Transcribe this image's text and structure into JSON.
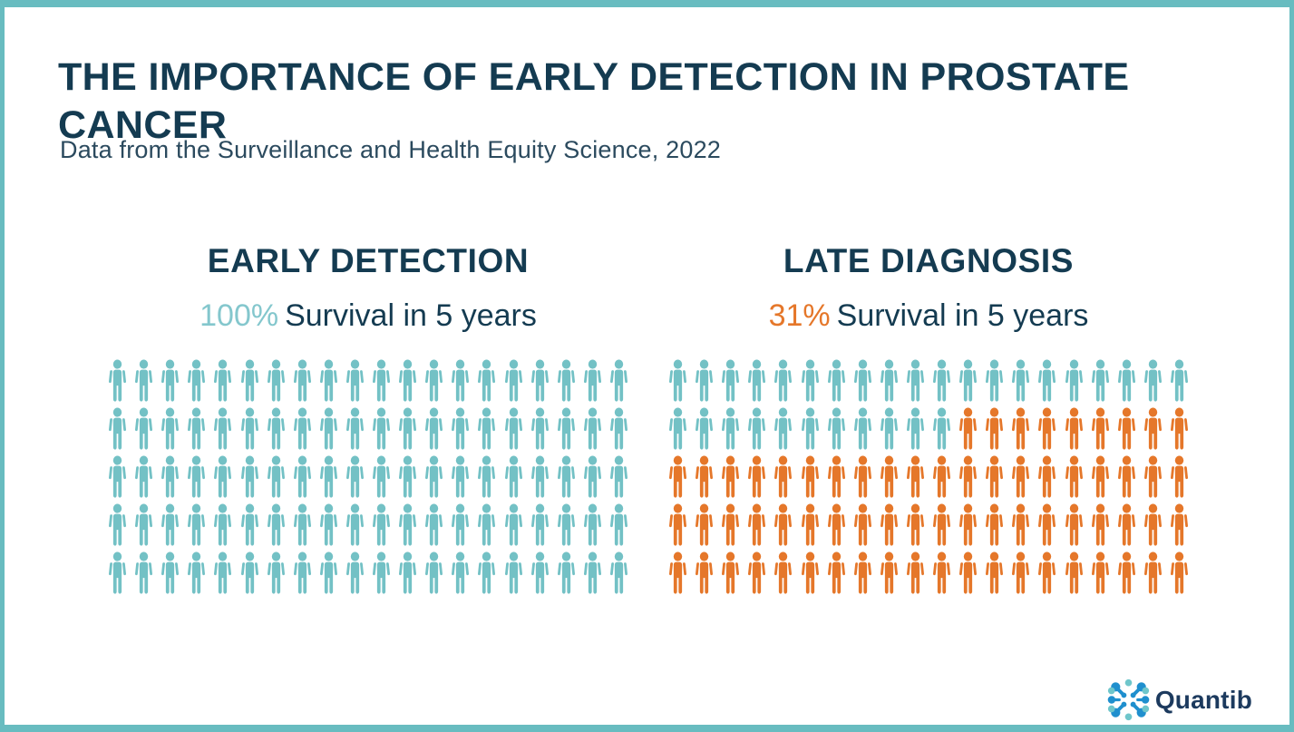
{
  "page": {
    "title": "THE IMPORTANCE OF EARLY DETECTION IN PROSTATE CANCER",
    "subtitle": "Data from the Surveillance and Health Equity Science, 2022"
  },
  "colors": {
    "frame_teal": "#68bcc0",
    "heading_navy": "#143b51",
    "subtitle_slate": "#2b4a5e",
    "person_teal": "#73c1c5",
    "person_orange": "#e5772a",
    "percent_teal": "#84c7cd",
    "percent_orange": "#e5772a",
    "logo_blue": "#1f8fce",
    "logo_teal": "#6fc6cb",
    "logo_navy": "#1c3a5e"
  },
  "chart_data": [
    {
      "type": "pictogram-waffle",
      "title": "EARLY DETECTION",
      "stat_percent": "100%",
      "stat_label": "Survival in 5 years",
      "rows": 5,
      "cols": 20,
      "total_icons": 100,
      "survived_icons": 100,
      "not_survived_icons": 0,
      "survived_percent": 100,
      "icon_colors": {
        "survived": "#73c1c5",
        "not_survived": "#e5772a"
      },
      "percent_color": "#84c7cd",
      "fill_order": "row-major-top-left"
    },
    {
      "type": "pictogram-waffle",
      "title": "LATE DIAGNOSIS",
      "stat_percent": "31%",
      "stat_label": "Survival in 5 years",
      "rows": 5,
      "cols": 20,
      "total_icons": 100,
      "survived_icons": 31,
      "not_survived_icons": 69,
      "survived_percent": 31,
      "icon_colors": {
        "survived": "#73c1c5",
        "not_survived": "#e5772a"
      },
      "percent_color": "#e5772a",
      "fill_order": "row-major-top-left"
    }
  ],
  "footer": {
    "logo_text": "Quantib"
  }
}
